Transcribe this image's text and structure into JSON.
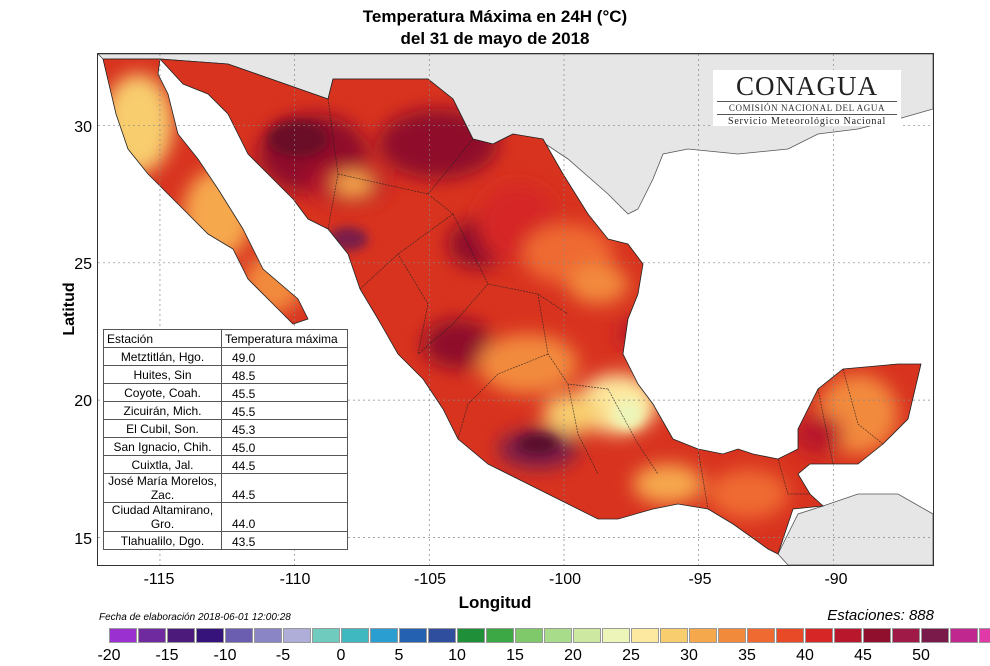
{
  "title": {
    "line1": "Temperatura Máxima en 24H (°C)",
    "line2": "del  31 de mayo de 2018"
  },
  "axes": {
    "xlabel": "Longitud",
    "ylabel": "Latitud",
    "xticks": [
      "-115",
      "-110",
      "-105",
      "-100",
      "-95",
      "-90"
    ],
    "yticks": [
      "30",
      "25",
      "20",
      "15"
    ],
    "lon_range": [
      -117.3,
      -86.3
    ],
    "lat_range": [
      14.0,
      32.6
    ],
    "grid": true
  },
  "logo": {
    "name": "CONAGUA",
    "subtitle": "COMISIÓN NACIONAL DEL AGUA",
    "service": "Servicio Meteorológico Nacional"
  },
  "table": {
    "headers": [
      "Estación",
      "Temperatura máxima"
    ],
    "rows": [
      {
        "station": "Metztitlán, Hgo.",
        "temp": "49.0"
      },
      {
        "station": "Huites, Sin",
        "temp": "48.5"
      },
      {
        "station": "Coyote, Coah.",
        "temp": "45.5"
      },
      {
        "station": "Zicuirán, Mich.",
        "temp": "45.5"
      },
      {
        "station": "El Cubil, Son.",
        "temp": "45.3"
      },
      {
        "station": "San Ignacio, Chih.",
        "temp": "45.0"
      },
      {
        "station": "Cuixtla, Jal.",
        "temp": "44.5"
      },
      {
        "station": "José María Morelos, Zac.",
        "temp": "44.5"
      },
      {
        "station": "Ciudad Altamirano, Gro.",
        "temp": "44.0"
      },
      {
        "station": "Tlahualilo, Dgo.",
        "temp": "43.5"
      }
    ]
  },
  "footer": {
    "date": "Fecha de elaboración 2018-06-01 12:00:28",
    "stations": "Estaciones:  888"
  },
  "colorbar": {
    "ticks": [
      "-20",
      "-15",
      "-10",
      "-5",
      "0",
      "5",
      "10",
      "15",
      "20",
      "25",
      "30",
      "35",
      "40",
      "45",
      "50"
    ],
    "colors": [
      "#9b30d0",
      "#6e2a9e",
      "#4b1a7a",
      "#36137a",
      "#6b5db0",
      "#8a86c6",
      "#aeaed8",
      "#6ecbbd",
      "#3fb8c0",
      "#2a9ed0",
      "#2461b0",
      "#2f4f9e",
      "#1f8f3a",
      "#3ba845",
      "#7fc96a",
      "#a8dc8b",
      "#cde8a0",
      "#eef5b8",
      "#fde9a0",
      "#f8cd6e",
      "#f6a84d",
      "#f28a3c",
      "#ef6a30",
      "#e84a28",
      "#d62626",
      "#b8172c",
      "#8f0f2c",
      "#a01a48",
      "#7a1a4a",
      "#c02890",
      "#e03aa8"
    ]
  }
}
